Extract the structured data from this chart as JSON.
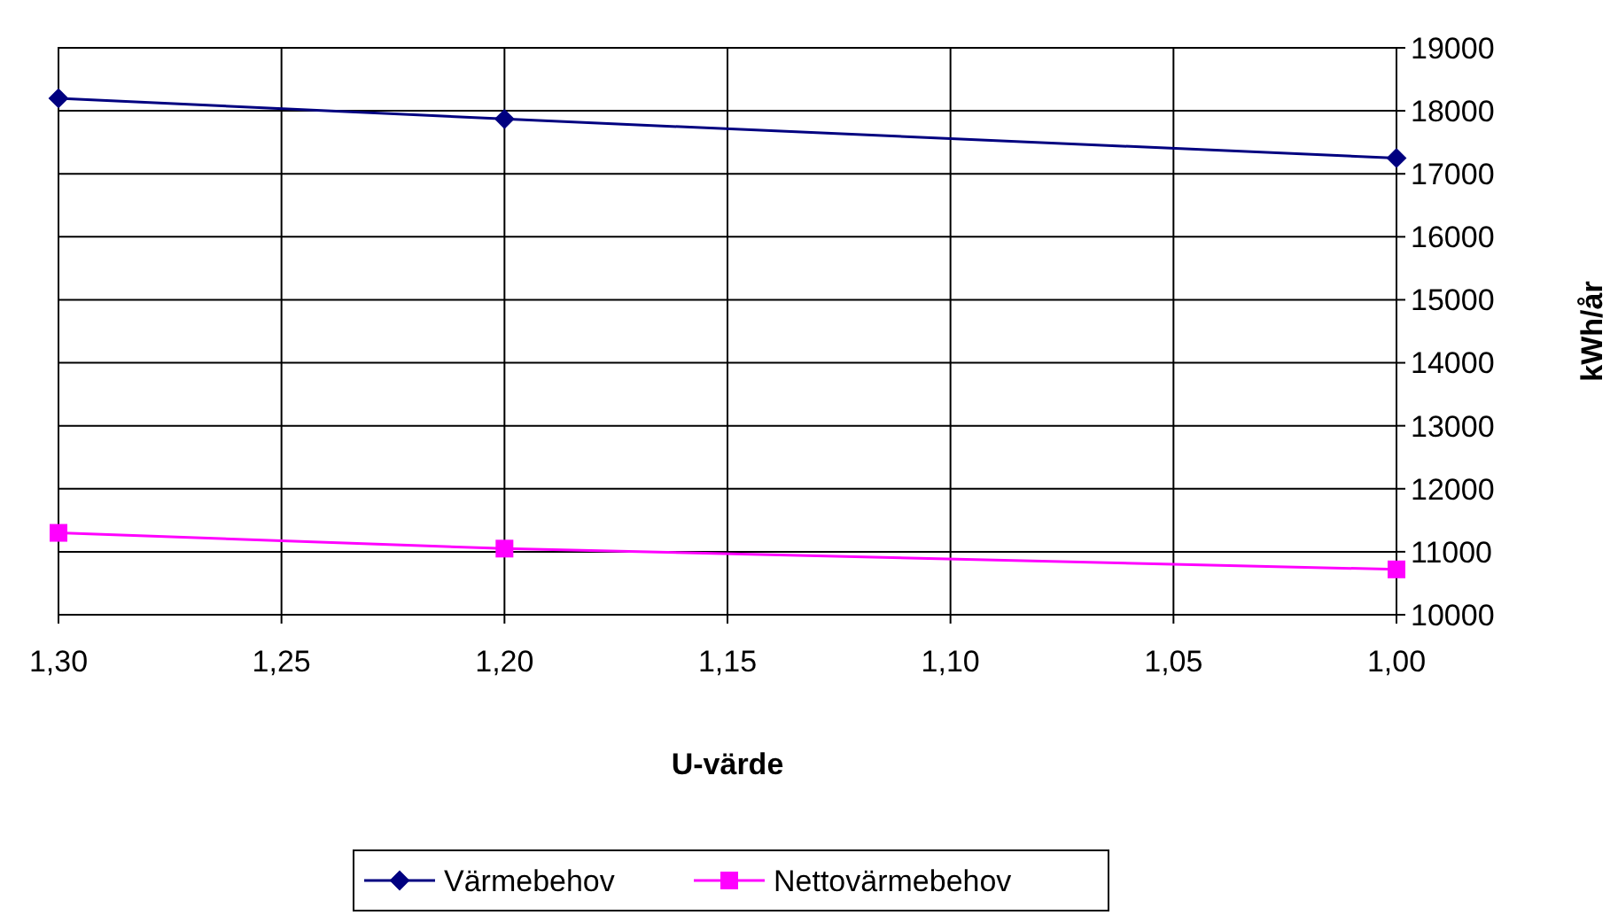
{
  "chart_data": {
    "type": "line",
    "xlabel": "U-värde",
    "ylabel": "kWh/år",
    "xlim": [
      1.3,
      1.0
    ],
    "xticks": [
      {
        "value": 1.3,
        "label": "1,30"
      },
      {
        "value": 1.25,
        "label": "1,25"
      },
      {
        "value": 1.2,
        "label": "1,20"
      },
      {
        "value": 1.15,
        "label": "1,15"
      },
      {
        "value": 1.1,
        "label": "1,10"
      },
      {
        "value": 1.05,
        "label": "1,05"
      },
      {
        "value": 1.0,
        "label": "1,00"
      }
    ],
    "ylim": [
      10000,
      19000
    ],
    "yticks": [
      10000,
      11000,
      12000,
      13000,
      14000,
      15000,
      16000,
      17000,
      18000,
      19000
    ],
    "x": [
      1.3,
      1.2,
      1.0
    ],
    "series": [
      {
        "name": "Värmebehov",
        "color": "#000080",
        "values": [
          18200,
          17870,
          17250
        ],
        "marker": "diamond"
      },
      {
        "name": "Nettovärmebehov",
        "color": "#ff00ff",
        "values": [
          11300,
          11050,
          10720
        ],
        "marker": "square"
      }
    ],
    "grid": true,
    "legend": "bottom",
    "line_style": "solid"
  }
}
